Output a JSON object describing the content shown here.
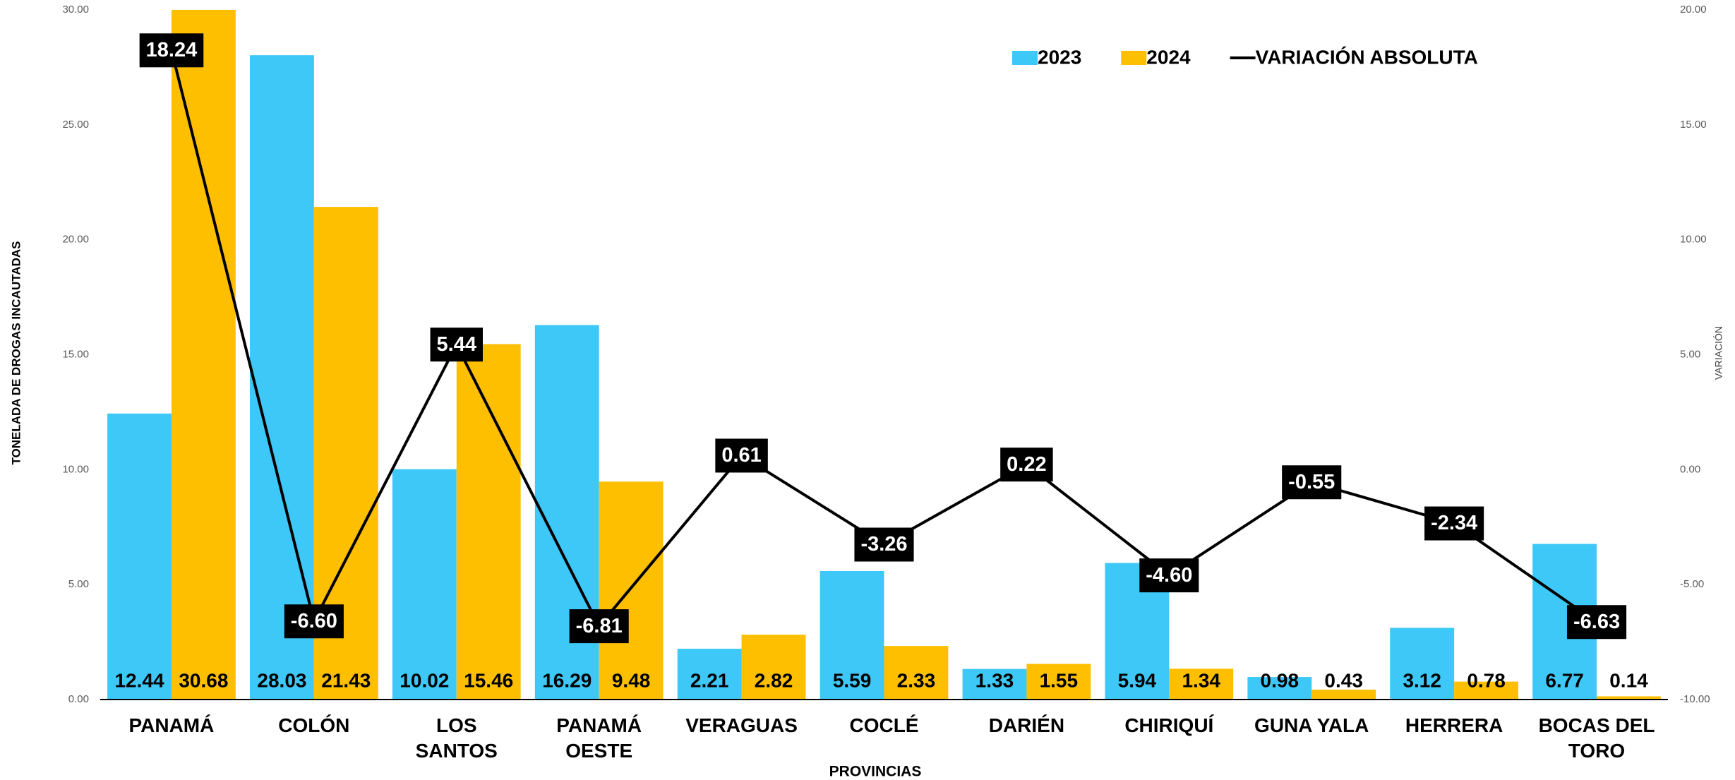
{
  "chart_data": {
    "type": "bar",
    "x_label": "PROVINCIAS",
    "y_label": "TONELADA DE DROGAS INCAUTADAS",
    "y2_label": "VARIACIÓN",
    "categories": [
      "PANAMÁ",
      "COLÓN",
      "LOS SANTOS",
      "PANAMÁ OESTE",
      "VERAGUAS",
      "COCLÉ",
      "DARIÉN",
      "CHIRIQUÍ",
      "GUNA YALA",
      "HERRERA",
      "BOCAS DEL TORO"
    ],
    "series": [
      {
        "name": "2023",
        "type": "bar",
        "color": "#3ec8f7",
        "values": [
          12.44,
          28.03,
          10.02,
          16.29,
          2.21,
          5.59,
          1.33,
          5.94,
          0.98,
          3.12,
          6.77
        ]
      },
      {
        "name": "2024",
        "type": "bar",
        "color": "#fdbf00",
        "values": [
          30.68,
          21.43,
          15.46,
          9.48,
          2.82,
          2.33,
          1.55,
          1.34,
          0.43,
          0.78,
          0.14
        ]
      },
      {
        "name": "VARIACIÓN ABSOLUTA",
        "type": "line",
        "axis": "y2",
        "color": "#000000",
        "values": [
          18.24,
          -6.6,
          5.44,
          -6.81,
          0.61,
          -3.26,
          0.22,
          -4.6,
          -0.55,
          -2.34,
          -6.63
        ],
        "value_labels": [
          "18.24",
          "-6.60",
          "5.44",
          "-6.81",
          "0.61",
          "-3.26",
          "0.22",
          "-4.60",
          "-0.55",
          "-2.34",
          "-6.63"
        ]
      }
    ],
    "ylim": [
      0,
      30
    ],
    "yticks": [
      {
        "value": 0,
        "label": "0.00"
      },
      {
        "value": 5,
        "label": "5.00"
      },
      {
        "value": 10,
        "label": "10.00"
      },
      {
        "value": 15,
        "label": "15.00"
      },
      {
        "value": 20,
        "label": "20.00"
      },
      {
        "value": 25,
        "label": "25.00"
      },
      {
        "value": 30,
        "label": "30.00"
      }
    ],
    "y2lim": [
      -10,
      20
    ],
    "y2ticks": [
      {
        "value": -10,
        "label": "-10.00"
      },
      {
        "value": -5,
        "label": "-5.00"
      },
      {
        "value": 0,
        "label": "0.00"
      },
      {
        "value": 5,
        "label": "5.00"
      },
      {
        "value": 10,
        "label": "10.00"
      },
      {
        "value": 15,
        "label": "15.00"
      },
      {
        "value": 20,
        "label": "20.00"
      }
    ],
    "legend": "top-right"
  }
}
